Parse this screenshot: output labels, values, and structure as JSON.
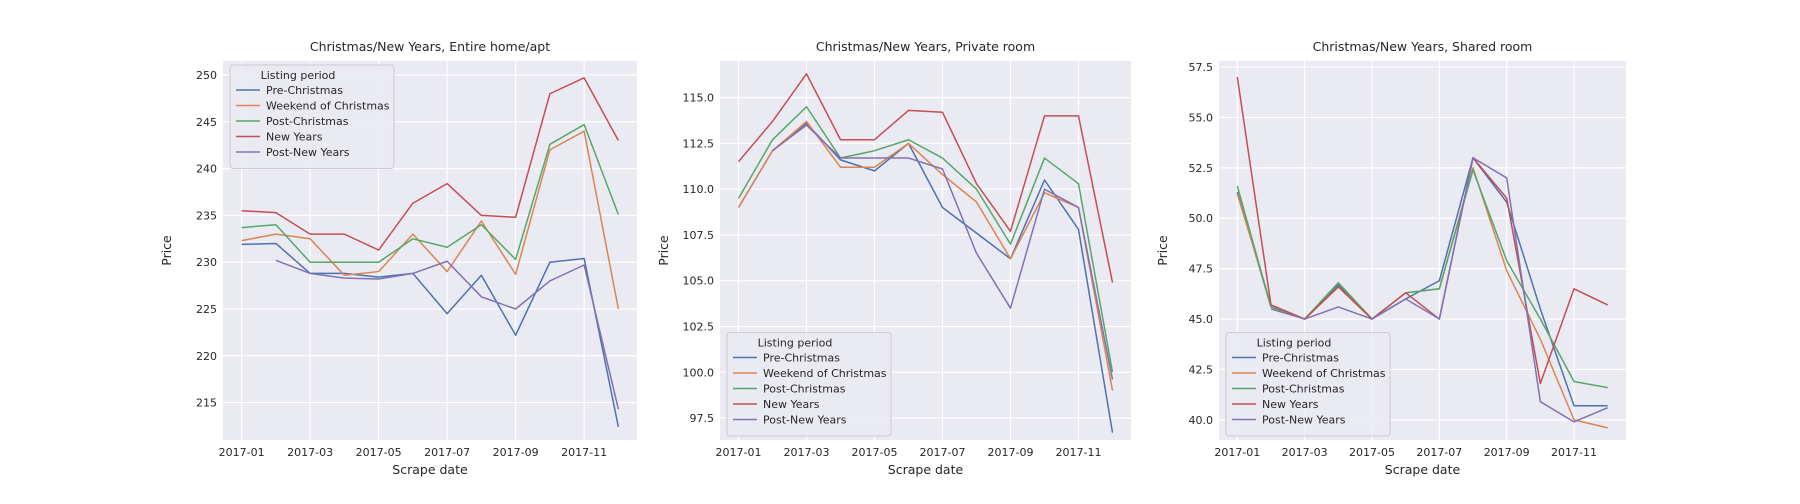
{
  "colors": {
    "Pre-Christmas": "#4C72B0",
    "Weekend of Christmas": "#DD8452",
    "Post-Christmas": "#55A868",
    "New Years": "#C44E52",
    "Post-New Years": "#8172B3"
  },
  "chart_data": [
    {
      "type": "line",
      "title": "Christmas/New Years, Entire home/apt",
      "xlabel": "Scrape date",
      "ylabel": "Price",
      "x": [
        "2017-01",
        "2017-02",
        "2017-03",
        "2017-04",
        "2017-05",
        "2017-06",
        "2017-07",
        "2017-08",
        "2017-09",
        "2017-10",
        "2017-11",
        "2017-12"
      ],
      "xticks": [
        "2017-01",
        "2017-03",
        "2017-05",
        "2017-07",
        "2017-09",
        "2017-11"
      ],
      "yticks": [
        215,
        220,
        225,
        230,
        235,
        240,
        245,
        250
      ],
      "ylim": [
        211,
        251.5
      ],
      "grid": true,
      "legend_title": "Listing period",
      "legend_position": "upper-left",
      "series": [
        {
          "name": "Pre-Christmas",
          "values": [
            231.9,
            232.0,
            228.8,
            228.8,
            228.4,
            228.8,
            224.5,
            228.6,
            222.2,
            230.0,
            230.4,
            212.4
          ]
        },
        {
          "name": "Weekend of Christmas",
          "values": [
            232.3,
            233.0,
            232.5,
            228.6,
            229.0,
            233.0,
            229.0,
            234.4,
            228.7,
            242.0,
            244.0,
            225.0
          ]
        },
        {
          "name": "Post-Christmas",
          "values": [
            233.7,
            234.0,
            230.0,
            230.0,
            230.0,
            232.5,
            231.6,
            234.0,
            230.3,
            242.6,
            244.7,
            235.1
          ]
        },
        {
          "name": "New Years",
          "values": [
            235.5,
            235.3,
            233.0,
            233.0,
            231.3,
            236.3,
            238.4,
            235.0,
            234.8,
            248.0,
            249.7,
            243.0
          ]
        },
        {
          "name": "Post-New Years",
          "values": [
            null,
            230.2,
            228.8,
            228.3,
            228.2,
            228.8,
            230.1,
            226.3,
            225.0,
            228.0,
            229.7,
            214.3
          ]
        }
      ]
    },
    {
      "type": "line",
      "title": "Christmas/New Years, Private room",
      "xlabel": "Scrape date",
      "ylabel": "Price",
      "x": [
        "2017-01",
        "2017-02",
        "2017-03",
        "2017-04",
        "2017-05",
        "2017-06",
        "2017-07",
        "2017-08",
        "2017-09",
        "2017-10",
        "2017-11",
        "2017-12"
      ],
      "xticks": [
        "2017-01",
        "2017-03",
        "2017-05",
        "2017-07",
        "2017-09",
        "2017-11"
      ],
      "yticks": [
        97.5,
        100.0,
        102.5,
        105.0,
        107.5,
        110.0,
        112.5,
        115.0
      ],
      "ylim": [
        96.3,
        117.0
      ],
      "grid": true,
      "legend_title": "Listing period",
      "legend_position": "lower-left",
      "series": [
        {
          "name": "Pre-Christmas",
          "values": [
            109.0,
            112.1,
            113.6,
            111.6,
            111.0,
            112.5,
            109.0,
            107.6,
            106.2,
            110.5,
            107.8,
            96.7
          ]
        },
        {
          "name": "Weekend of Christmas",
          "values": [
            109.0,
            112.1,
            113.7,
            111.2,
            111.2,
            112.5,
            110.8,
            109.3,
            106.2,
            109.8,
            109.0,
            99.0
          ]
        },
        {
          "name": "Post-Christmas",
          "values": [
            109.5,
            112.7,
            114.5,
            111.7,
            112.1,
            112.7,
            111.7,
            110.0,
            107.0,
            111.7,
            110.3,
            100.0
          ]
        },
        {
          "name": "New Years",
          "values": [
            111.5,
            113.7,
            116.3,
            112.7,
            112.7,
            114.3,
            114.2,
            110.3,
            107.7,
            114.0,
            114.0,
            104.9
          ]
        },
        {
          "name": "Post-New Years",
          "values": [
            null,
            112.1,
            113.5,
            111.7,
            111.7,
            111.7,
            111.1,
            106.5,
            103.5,
            110.0,
            109.0,
            99.6
          ]
        }
      ]
    },
    {
      "type": "line",
      "title": "Christmas/New Years, Shared room",
      "xlabel": "Scrape date",
      "ylabel": "Price",
      "x": [
        "2017-01",
        "2017-02",
        "2017-03",
        "2017-04",
        "2017-05",
        "2017-06",
        "2017-07",
        "2017-08",
        "2017-09",
        "2017-10",
        "2017-11",
        "2017-12"
      ],
      "xticks": [
        "2017-01",
        "2017-03",
        "2017-05",
        "2017-07",
        "2017-09",
        "2017-11"
      ],
      "yticks": [
        40.0,
        42.5,
        45.0,
        47.5,
        50.0,
        52.5,
        55.0,
        57.5
      ],
      "ylim": [
        39.0,
        57.8
      ],
      "grid": true,
      "legend_title": "Listing period",
      "legend_position": "lower-left",
      "series": [
        {
          "name": "Pre-Christmas",
          "values": [
            51.3,
            45.6,
            45.0,
            46.7,
            45.0,
            46.0,
            46.9,
            53.0,
            50.8,
            45.5,
            40.7,
            40.7
          ]
        },
        {
          "name": "Weekend of Christmas",
          "values": [
            51.2,
            45.7,
            45.0,
            46.6,
            45.0,
            46.3,
            46.5,
            52.5,
            47.4,
            44.0,
            40.0,
            39.6
          ]
        },
        {
          "name": "Post-Christmas",
          "values": [
            51.6,
            45.6,
            45.0,
            46.8,
            45.0,
            46.3,
            46.5,
            52.4,
            47.9,
            45.0,
            41.9,
            41.6
          ]
        },
        {
          "name": "New Years",
          "values": [
            57.0,
            45.7,
            45.0,
            46.6,
            45.0,
            46.3,
            45.0,
            53.0,
            51.0,
            41.8,
            46.5,
            45.7
          ]
        },
        {
          "name": "Post-New Years",
          "values": [
            null,
            45.5,
            45.0,
            45.6,
            45.0,
            46.0,
            45.0,
            53.0,
            52.0,
            40.9,
            39.9,
            40.6
          ]
        }
      ]
    }
  ]
}
